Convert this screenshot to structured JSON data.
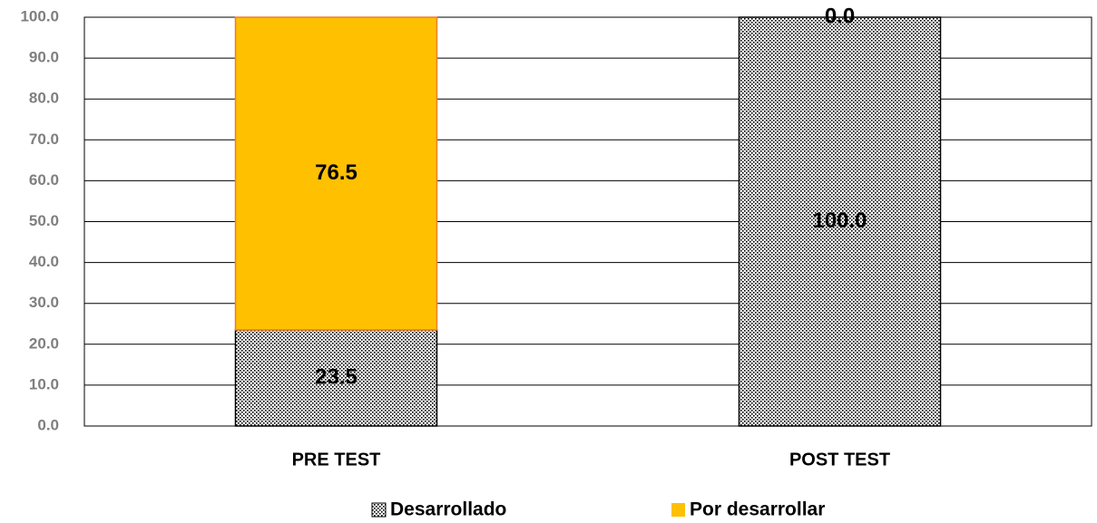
{
  "chart_data": {
    "type": "stacked_bar",
    "categories": [
      "PRE TEST",
      "POST TEST"
    ],
    "series": [
      {
        "name": "Desarrollado",
        "color": "#000000",
        "pattern": "dots",
        "values": [
          23.5,
          100.0
        ],
        "value_labels": [
          "23.5",
          "100.0"
        ]
      },
      {
        "name": "Por desarrollar",
        "color": "#ffc000",
        "values": [
          76.5,
          0.0
        ],
        "value_labels": [
          "76.5",
          "0.0"
        ]
      }
    ],
    "ylim": [
      0,
      100
    ],
    "yticks": [
      {
        "value": 0,
        "label": "0.0"
      },
      {
        "value": 10,
        "label": "10.0"
      },
      {
        "value": 20,
        "label": "20.0"
      },
      {
        "value": 30,
        "label": "30.0"
      },
      {
        "value": 40,
        "label": "40.0"
      },
      {
        "value": 50,
        "label": "50.0"
      },
      {
        "value": 60,
        "label": "60.0"
      },
      {
        "value": 70,
        "label": "70.0"
      },
      {
        "value": 80,
        "label": "80.0"
      },
      {
        "value": 90,
        "label": "90.0"
      },
      {
        "value": 100,
        "label": "100.0"
      }
    ],
    "grid": true,
    "legend": "bottom"
  }
}
